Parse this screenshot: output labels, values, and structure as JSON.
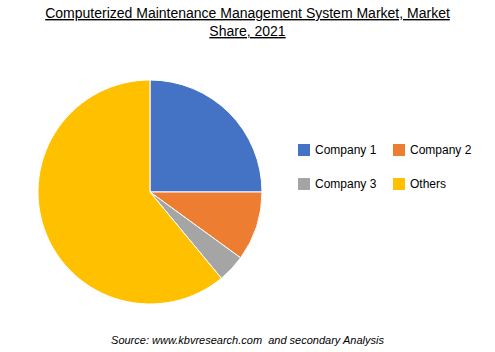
{
  "chart_data": {
    "type": "pie",
    "title": [
      "Computerized Maintenance Management System Market, Market",
      "Share, 2021"
    ],
    "annotations": [
      "Source: www.kbvresearch.com  and secondary Analysis"
    ],
    "categories": [
      "Company 1",
      "Company 2",
      "Company 3",
      "Others"
    ],
    "values": [
      25,
      10,
      4,
      61
    ],
    "colors": [
      "#4472C4",
      "#ED7D31",
      "#A5A5A5",
      "#FFC000"
    ],
    "legend": "right"
  }
}
